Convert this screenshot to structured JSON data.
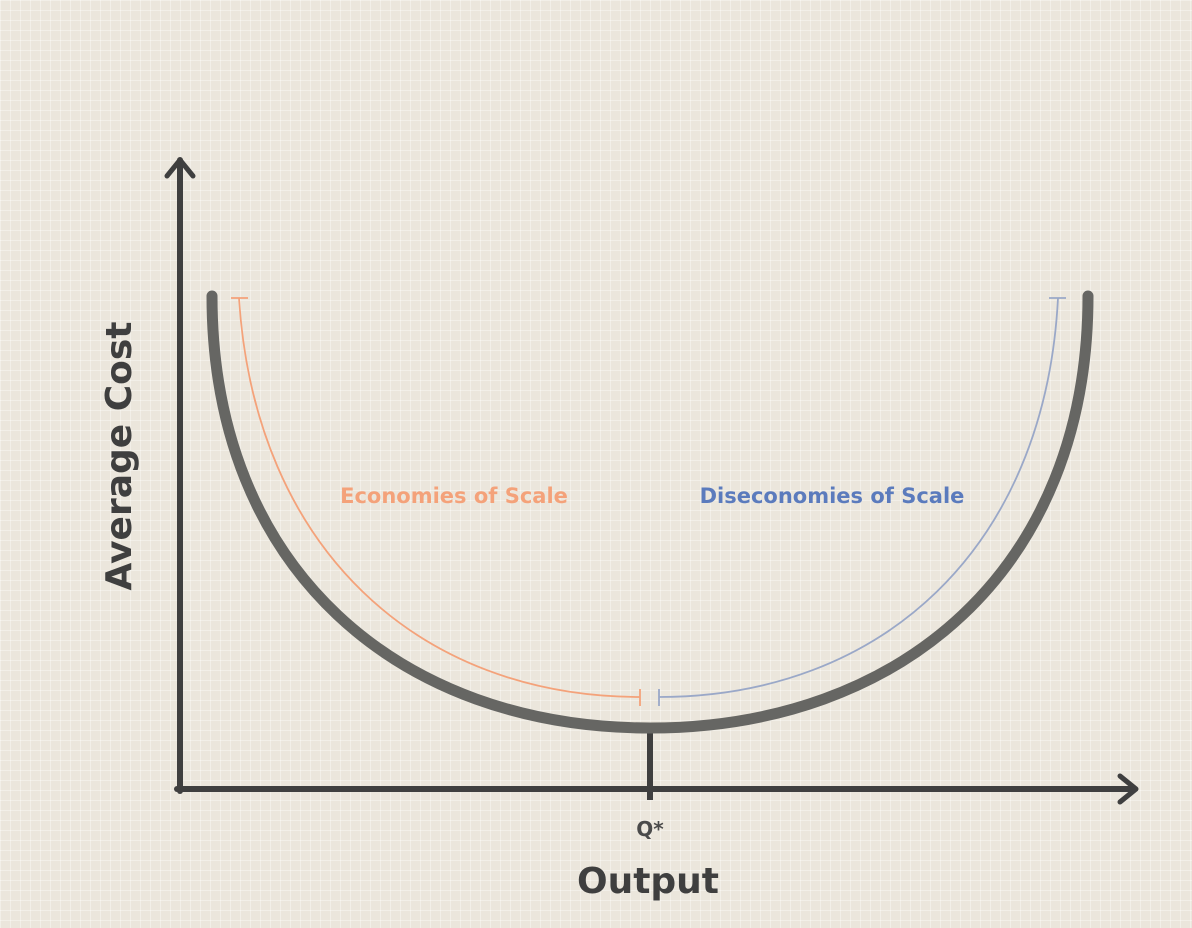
{
  "diagram": {
    "axes": {
      "y_title": "Average Cost",
      "x_title": "Output",
      "x_marker": "Q*"
    },
    "regions": {
      "left": "Economies of Scale",
      "right": "Diseconomies of Scale"
    },
    "colors": {
      "background": "#ebe6dc",
      "axis": "#3f3f3f",
      "curve": "#666663",
      "economies": "#f4a27a",
      "diseconomies": "#9aa8c8",
      "diseconomies_text": "#5b7bbd"
    }
  }
}
